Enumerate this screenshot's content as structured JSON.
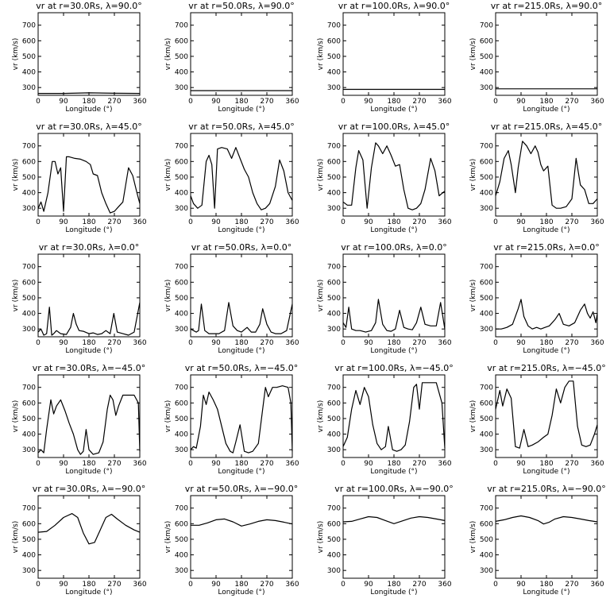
{
  "chart_data": {
    "type": "line",
    "grid": false,
    "panels": [
      {
        "title": "vr at r=30.0Rs, λ=90.0°",
        "xlabel": "Longitude (°)",
        "ylabel": "vr (km/s)",
        "xlim": [
          0,
          360
        ],
        "ylim": [
          250,
          780
        ],
        "x": [
          0,
          90,
          180,
          270,
          360
        ],
        "values": [
          262,
          262,
          266,
          263,
          262
        ]
      },
      {
        "title": "vr at r=50.0Rs, λ=90.0°",
        "xlabel": "Longitude (°)",
        "ylabel": "vr (km/s)",
        "xlim": [
          0,
          360
        ],
        "ylim": [
          250,
          780
        ],
        "x": [
          0,
          90,
          180,
          270,
          360
        ],
        "values": [
          280,
          280,
          280,
          280,
          280
        ]
      },
      {
        "title": "vr at r=100.0Rs, λ=90.0°",
        "xlabel": "Longitude (°)",
        "ylabel": "vr (km/s)",
        "xlim": [
          0,
          360
        ],
        "ylim": [
          250,
          780
        ],
        "x": [
          0,
          90,
          180,
          270,
          360
        ],
        "values": [
          288,
          288,
          288,
          288,
          288
        ]
      },
      {
        "title": "vr at r=215.0Rs, λ=90.0°",
        "xlabel": "Longitude (°)",
        "ylabel": "vr (km/s)",
        "xlim": [
          0,
          360
        ],
        "ylim": [
          250,
          780
        ],
        "x": [
          0,
          90,
          180,
          270,
          360
        ],
        "values": [
          292,
          292,
          292,
          292,
          292
        ]
      },
      {
        "title": "vr at r=30.0Rs, λ=45.0°",
        "xlabel": "Longitude (°)",
        "ylabel": "vr (km/s)",
        "xlim": [
          0,
          360
        ],
        "ylim": [
          250,
          780
        ],
        "x": [
          0,
          10,
          20,
          35,
          50,
          60,
          70,
          80,
          90,
          100,
          110,
          130,
          150,
          170,
          185,
          195,
          210,
          225,
          240,
          255,
          270,
          285,
          300,
          320,
          335,
          350,
          360
        ],
        "values": [
          300,
          340,
          280,
          400,
          600,
          600,
          520,
          560,
          280,
          630,
          630,
          620,
          615,
          600,
          580,
          520,
          510,
          400,
          330,
          270,
          280,
          310,
          340,
          560,
          510,
          400,
          330
        ]
      },
      {
        "title": "vr at r=50.0Rs, λ=45.0°",
        "xlabel": "Longitude (°)",
        "ylabel": "vr (km/s)",
        "xlim": [
          0,
          360
        ],
        "ylim": [
          250,
          780
        ],
        "x": [
          0,
          10,
          25,
          40,
          55,
          65,
          75,
          85,
          95,
          110,
          130,
          145,
          160,
          175,
          190,
          205,
          220,
          235,
          250,
          265,
          280,
          300,
          315,
          330,
          345,
          360
        ],
        "values": [
          380,
          330,
          300,
          320,
          600,
          640,
          580,
          300,
          680,
          690,
          680,
          620,
          690,
          620,
          550,
          500,
          400,
          330,
          290,
          300,
          330,
          440,
          610,
          540,
          400,
          350
        ]
      },
      {
        "title": "vr at r=100.0Rs, λ=45.0°",
        "xlabel": "Longitude (°)",
        "ylabel": "vr (km/s)",
        "xlim": [
          0,
          360
        ],
        "ylim": [
          250,
          780
        ],
        "x": [
          0,
          15,
          30,
          45,
          55,
          70,
          85,
          100,
          115,
          125,
          140,
          155,
          170,
          185,
          200,
          215,
          230,
          245,
          260,
          275,
          290,
          310,
          325,
          340,
          360
        ],
        "values": [
          340,
          320,
          320,
          560,
          670,
          610,
          300,
          560,
          720,
          700,
          650,
          700,
          640,
          570,
          580,
          420,
          300,
          290,
          300,
          330,
          420,
          620,
          540,
          380,
          410
        ]
      },
      {
        "title": "vr at r=215.0Rs, λ=45.0°",
        "xlabel": "Longitude (°)",
        "ylabel": "vr (km/s)",
        "xlim": [
          0,
          360
        ],
        "ylim": [
          250,
          780
        ],
        "x": [
          0,
          15,
          30,
          45,
          55,
          70,
          80,
          95,
          110,
          125,
          140,
          150,
          160,
          170,
          185,
          200,
          215,
          230,
          250,
          270,
          285,
          300,
          315,
          330,
          345,
          360
        ],
        "values": [
          380,
          470,
          620,
          670,
          580,
          400,
          560,
          730,
          700,
          650,
          700,
          660,
          580,
          540,
          570,
          320,
          300,
          300,
          310,
          360,
          620,
          450,
          420,
          330,
          330,
          360
        ]
      },
      {
        "title": "vr at r=30.0Rs, λ=0.0°",
        "xlabel": "Longitude (°)",
        "ylabel": "vr (km/s)",
        "xlim": [
          0,
          360
        ],
        "ylim": [
          250,
          780
        ],
        "x": [
          0,
          10,
          20,
          30,
          40,
          48,
          55,
          65,
          80,
          100,
          115,
          125,
          135,
          145,
          160,
          180,
          195,
          210,
          225,
          240,
          255,
          268,
          280,
          300,
          320,
          340,
          360
        ],
        "values": [
          280,
          300,
          260,
          270,
          440,
          260,
          270,
          290,
          270,
          265,
          310,
          400,
          330,
          290,
          285,
          270,
          275,
          265,
          270,
          290,
          270,
          400,
          280,
          270,
          260,
          280,
          470
        ]
      },
      {
        "title": "vr at r=50.0Rs, λ=0.0°",
        "xlabel": "Longitude (°)",
        "ylabel": "vr (km/s)",
        "xlim": [
          0,
          360
        ],
        "ylim": [
          250,
          780
        ],
        "x": [
          0,
          10,
          20,
          28,
          38,
          50,
          65,
          80,
          100,
          120,
          135,
          150,
          165,
          180,
          200,
          215,
          230,
          245,
          255,
          270,
          285,
          300,
          320,
          340,
          360
        ],
        "values": [
          300,
          290,
          280,
          290,
          460,
          290,
          270,
          270,
          270,
          290,
          470,
          320,
          290,
          280,
          310,
          280,
          280,
          330,
          430,
          330,
          280,
          270,
          270,
          290,
          460
        ]
      },
      {
        "title": "vr at r=100.0Rs, λ=0.0°",
        "xlabel": "Longitude (°)",
        "ylabel": "vr (km/s)",
        "xlim": [
          0,
          360
        ],
        "ylim": [
          250,
          780
        ],
        "x": [
          0,
          10,
          20,
          30,
          45,
          60,
          80,
          100,
          115,
          125,
          140,
          155,
          170,
          185,
          200,
          215,
          230,
          245,
          260,
          275,
          290,
          310,
          330,
          345,
          360
        ],
        "values": [
          340,
          310,
          440,
          300,
          290,
          290,
          280,
          290,
          340,
          490,
          330,
          290,
          285,
          300,
          420,
          310,
          300,
          295,
          340,
          440,
          330,
          320,
          320,
          470,
          300
        ]
      },
      {
        "title": "vr at r=215.0Rs, λ=0.0°",
        "xlabel": "Longitude (°)",
        "ylabel": "vr (km/s)",
        "xlim": [
          0,
          360
        ],
        "ylim": [
          250,
          780
        ],
        "x": [
          0,
          20,
          40,
          60,
          80,
          90,
          100,
          115,
          130,
          145,
          160,
          175,
          190,
          210,
          225,
          240,
          260,
          280,
          300,
          315,
          325,
          335,
          345,
          355,
          360
        ],
        "values": [
          300,
          300,
          310,
          330,
          430,
          490,
          380,
          320,
          300,
          310,
          300,
          310,
          320,
          360,
          400,
          330,
          320,
          340,
          420,
          460,
          400,
          370,
          410,
          340,
          400
        ]
      },
      {
        "title": "vr at r=30.0Rs, λ=−45.0°",
        "xlabel": "Longitude (°)",
        "ylabel": "vr (km/s)",
        "xlim": [
          0,
          360
        ],
        "ylim": [
          250,
          780
        ],
        "x": [
          0,
          10,
          20,
          30,
          45,
          55,
          65,
          80,
          95,
          110,
          125,
          140,
          150,
          160,
          170,
          180,
          195,
          215,
          230,
          245,
          255,
          265,
          275,
          285,
          300,
          320,
          340,
          355,
          360
        ],
        "values": [
          280,
          300,
          280,
          430,
          620,
          530,
          580,
          620,
          550,
          470,
          400,
          300,
          270,
          290,
          430,
          300,
          270,
          280,
          350,
          560,
          650,
          620,
          520,
          580,
          650,
          650,
          650,
          600,
          290
        ]
      },
      {
        "title": "vr at r=50.0Rs, λ=−45.0°",
        "xlabel": "Longitude (°)",
        "ylabel": "vr (km/s)",
        "xlim": [
          0,
          360
        ],
        "ylim": [
          250,
          780
        ],
        "x": [
          0,
          10,
          20,
          35,
          45,
          55,
          65,
          80,
          95,
          110,
          125,
          140,
          150,
          160,
          175,
          190,
          205,
          220,
          240,
          255,
          265,
          275,
          290,
          305,
          325,
          345,
          355,
          360
        ],
        "values": [
          300,
          320,
          310,
          450,
          650,
          590,
          670,
          620,
          560,
          450,
          340,
          290,
          280,
          350,
          460,
          290,
          280,
          290,
          340,
          560,
          700,
          640,
          700,
          700,
          710,
          700,
          600,
          290
        ]
      },
      {
        "title": "vr at r=100.0Rs, λ=−45.0°",
        "xlabel": "Longitude (°)",
        "ylabel": "vr (km/s)",
        "xlim": [
          0,
          360
        ],
        "ylim": [
          250,
          780
        ],
        "x": [
          0,
          15,
          30,
          45,
          60,
          75,
          90,
          105,
          120,
          135,
          150,
          160,
          175,
          190,
          205,
          220,
          235,
          250,
          260,
          270,
          280,
          295,
          310,
          330,
          350,
          360
        ],
        "values": [
          320,
          380,
          560,
          680,
          590,
          700,
          640,
          460,
          340,
          300,
          320,
          450,
          300,
          290,
          300,
          330,
          480,
          700,
          720,
          560,
          730,
          730,
          730,
          730,
          600,
          310
        ]
      },
      {
        "title": "vr at r=215.0Rs, λ=−45.0°",
        "xlabel": "Longitude (°)",
        "ylabel": "vr (km/s)",
        "xlim": [
          0,
          360
        ],
        "ylim": [
          250,
          780
        ],
        "x": [
          0,
          15,
          25,
          40,
          55,
          70,
          85,
          100,
          115,
          130,
          150,
          170,
          185,
          200,
          215,
          230,
          245,
          260,
          275,
          290,
          305,
          320,
          335,
          350,
          360
        ],
        "values": [
          560,
          680,
          580,
          690,
          630,
          320,
          310,
          430,
          320,
          330,
          350,
          380,
          400,
          520,
          690,
          600,
          700,
          740,
          740,
          450,
          330,
          320,
          330,
          400,
          460
        ]
      },
      {
        "title": "vr at r=30.0Rs, λ=−90.0°",
        "xlabel": "Longitude (°)",
        "ylabel": "vr (km/s)",
        "xlim": [
          0,
          360
        ],
        "ylim": [
          250,
          780
        ],
        "x": [
          0,
          30,
          60,
          90,
          120,
          140,
          160,
          180,
          200,
          220,
          240,
          260,
          280,
          310,
          340,
          360
        ],
        "values": [
          545,
          550,
          590,
          640,
          665,
          640,
          540,
          470,
          480,
          560,
          640,
          660,
          630,
          590,
          560,
          545
        ]
      },
      {
        "title": "vr at r=50.0Rs, λ=−90.0°",
        "xlabel": "Longitude (°)",
        "ylabel": "vr (km/s)",
        "xlim": [
          0,
          360
        ],
        "ylim": [
          250,
          780
        ],
        "x": [
          0,
          30,
          60,
          90,
          120,
          150,
          180,
          210,
          240,
          270,
          300,
          330,
          360
        ],
        "values": [
          590,
          590,
          605,
          625,
          630,
          612,
          585,
          598,
          615,
          625,
          620,
          610,
          598
        ]
      },
      {
        "title": "vr at r=100.0Rs, λ=−90.0°",
        "xlabel": "Longitude (°)",
        "ylabel": "vr (km/s)",
        "xlim": [
          0,
          360
        ],
        "ylim": [
          250,
          780
        ],
        "x": [
          0,
          30,
          60,
          90,
          120,
          150,
          180,
          210,
          240,
          270,
          300,
          330,
          360
        ],
        "values": [
          612,
          615,
          630,
          645,
          640,
          620,
          600,
          618,
          636,
          645,
          640,
          630,
          620
        ]
      },
      {
        "title": "vr at r=215.0Rs, λ=−90.0°",
        "xlabel": "Longitude (°)",
        "ylabel": "vr (km/s)",
        "xlim": [
          0,
          360
        ],
        "ylim": [
          250,
          780
        ],
        "x": [
          0,
          30,
          60,
          90,
          120,
          150,
          170,
          190,
          210,
          240,
          270,
          300,
          330,
          360
        ],
        "values": [
          615,
          625,
          640,
          650,
          640,
          620,
          598,
          610,
          630,
          645,
          640,
          630,
          620,
          612
        ]
      }
    ],
    "xticks": [
      0,
      90,
      180,
      270,
      360
    ],
    "yticks": [
      300,
      400,
      500,
      600,
      700
    ]
  }
}
